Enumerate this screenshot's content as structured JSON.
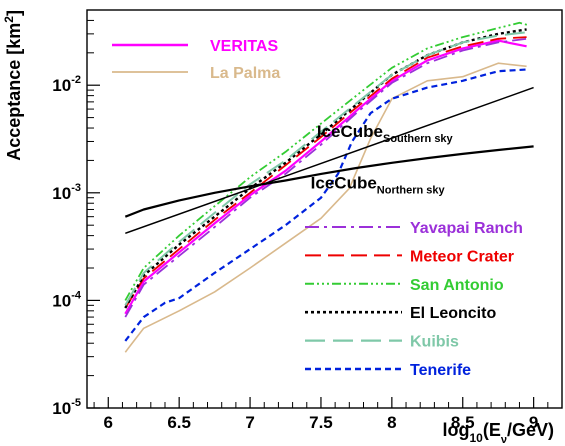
{
  "chart_data": {
    "type": "line",
    "title": "",
    "xlabel": {
      "prefix": "log",
      "sub1": "10",
      "mid": "(E",
      "sub2": "ν",
      "suffix": "/GeV)"
    },
    "ylabel": {
      "text": "Acceptance [km",
      "sup": "2",
      "close": "]"
    },
    "xlim": [
      5.85,
      9.2
    ],
    "ylim": [
      1e-05,
      0.05
    ],
    "yscale": "log",
    "grid": false,
    "x_ticks": [
      6,
      6.5,
      7,
      7.5,
      8,
      8.5,
      9
    ],
    "x_tick_labels": [
      "6",
      "6.5",
      "7",
      "7.5",
      "8",
      "8.5",
      "9"
    ],
    "y_ticks": [
      {
        "value": 1e-05,
        "base": "10",
        "exp": "-5"
      },
      {
        "value": 0.0001,
        "base": "10",
        "exp": "-4"
      },
      {
        "value": 0.001,
        "base": "10",
        "exp": "-3"
      },
      {
        "value": 0.01,
        "base": "10",
        "exp": "-2"
      }
    ],
    "annotations": [
      {
        "name": "icecube-southern-label",
        "main": "IceCube",
        "sub": "Southern sky",
        "at": [
          7.95,
          0.0033
        ]
      },
      {
        "name": "icecube-northern-label",
        "main": "IceCube",
        "sub": "Northern sky",
        "at": [
          7.9,
          0.0011
        ]
      }
    ],
    "series": [
      {
        "name": "VERITAS",
        "color": "#ff00ff",
        "dash": "",
        "width": 2.2,
        "legend": true,
        "x": [
          6.12,
          6.25,
          6.5,
          6.75,
          7.0,
          7.25,
          7.5,
          7.75,
          8.0,
          8.25,
          8.5,
          8.75,
          8.95
        ],
        "y": [
          7.5e-05,
          0.00015,
          0.00028,
          0.00052,
          0.00095,
          0.0016,
          0.003,
          0.0058,
          0.011,
          0.017,
          0.022,
          0.026,
          0.023
        ]
      },
      {
        "name": "La Palma",
        "color": "#d9b98c",
        "dash": "",
        "width": 1.6,
        "legend": true,
        "x": [
          6.12,
          6.25,
          6.5,
          6.75,
          7.0,
          7.25,
          7.5,
          7.7,
          7.85,
          8.0,
          8.25,
          8.5,
          8.75,
          8.95
        ],
        "y": [
          3.3e-05,
          5.5e-05,
          8e-05,
          0.00012,
          0.0002,
          0.00034,
          0.00058,
          0.0011,
          0.0032,
          0.0075,
          0.011,
          0.012,
          0.016,
          0.015
        ]
      },
      {
        "name": "Yavapai Ranch",
        "color": "#9b30d9",
        "dash": "14,5,3,5",
        "width": 1.8,
        "legend": true,
        "x": [
          6.12,
          6.25,
          6.5,
          6.75,
          7.0,
          7.25,
          7.5,
          7.75,
          8.0,
          8.25,
          8.5,
          8.75,
          8.95
        ],
        "y": [
          7e-05,
          0.00014,
          0.00026,
          0.00048,
          0.0009,
          0.0015,
          0.0028,
          0.0055,
          0.0105,
          0.016,
          0.021,
          0.025,
          0.027
        ]
      },
      {
        "name": "Meteor Crater",
        "color": "#ee0000",
        "dash": "16,7",
        "width": 1.8,
        "legend": true,
        "x": [
          6.12,
          6.25,
          6.5,
          6.75,
          7.0,
          7.25,
          7.5,
          7.75,
          8.0,
          8.25,
          8.5,
          8.75,
          8.95
        ],
        "y": [
          8.5e-05,
          0.00016,
          0.0003,
          0.00056,
          0.001,
          0.0018,
          0.0033,
          0.0062,
          0.0115,
          0.018,
          0.023,
          0.027,
          0.028
        ]
      },
      {
        "name": "San Antonio",
        "color": "#33cc33",
        "dash": "9,3,2,3,2,3,2,3",
        "width": 1.8,
        "legend": true,
        "x": [
          6.12,
          6.25,
          6.5,
          6.75,
          7.0,
          7.25,
          7.5,
          7.75,
          8.0,
          8.25,
          8.5,
          8.75,
          8.9,
          8.97
        ],
        "y": [
          0.0001,
          0.0002,
          0.0004,
          0.00075,
          0.0014,
          0.0024,
          0.0044,
          0.008,
          0.0145,
          0.022,
          0.028,
          0.034,
          0.038,
          0.036
        ]
      },
      {
        "name": "El Leoncito",
        "color": "#000000",
        "dash": "3,3",
        "width": 2.4,
        "legend": true,
        "x": [
          6.12,
          6.25,
          6.5,
          6.75,
          7.0,
          7.25,
          7.5,
          7.75,
          8.0,
          8.25,
          8.5,
          8.75,
          8.95
        ],
        "y": [
          8.5e-05,
          0.00017,
          0.00033,
          0.0006,
          0.0011,
          0.0019,
          0.0035,
          0.0066,
          0.0125,
          0.019,
          0.025,
          0.03,
          0.033
        ]
      },
      {
        "name": "Kuibis",
        "color": "#7fc8a8",
        "dash": "20,8",
        "width": 2.0,
        "legend": true,
        "x": [
          6.12,
          6.25,
          6.5,
          6.75,
          7.0,
          7.25,
          7.5,
          7.75,
          8.0,
          8.25,
          8.5,
          8.75,
          8.95
        ],
        "y": [
          9e-05,
          0.00018,
          0.00035,
          0.00065,
          0.0012,
          0.002,
          0.0037,
          0.0068,
          0.0125,
          0.019,
          0.025,
          0.029,
          0.031
        ]
      },
      {
        "name": "Tenerife",
        "color": "#0022dd",
        "dash": "6,4",
        "width": 2.2,
        "legend": true,
        "x": [
          6.12,
          6.25,
          6.4,
          6.5,
          6.75,
          7.0,
          7.25,
          7.5,
          7.62,
          7.72,
          7.85,
          8.0,
          8.25,
          8.5,
          8.75,
          8.95
        ],
        "y": [
          4.2e-05,
          7e-05,
          9.5e-05,
          0.000105,
          0.00018,
          0.0003,
          0.0005,
          0.0009,
          0.0015,
          0.003,
          0.0055,
          0.0075,
          0.0095,
          0.011,
          0.0135,
          0.014
        ]
      },
      {
        "name": "IceCube Southern sky",
        "color": "#000000",
        "dash": "",
        "width": 1.5,
        "legend": false,
        "x": [
          6.12,
          9.0
        ],
        "y": [
          0.00042,
          0.0095
        ]
      },
      {
        "name": "IceCube Northern sky",
        "color": "#000000",
        "dash": "",
        "width": 2.2,
        "legend": false,
        "x": [
          6.12,
          6.25,
          6.5,
          6.75,
          7.0,
          7.25,
          7.5,
          7.75,
          8.0,
          8.25,
          8.5,
          8.75,
          9.0
        ],
        "y": [
          0.0006,
          0.0007,
          0.00085,
          0.001,
          0.00115,
          0.0013,
          0.0015,
          0.0017,
          0.0019,
          0.0021,
          0.0023,
          0.0025,
          0.0027
        ]
      }
    ]
  }
}
